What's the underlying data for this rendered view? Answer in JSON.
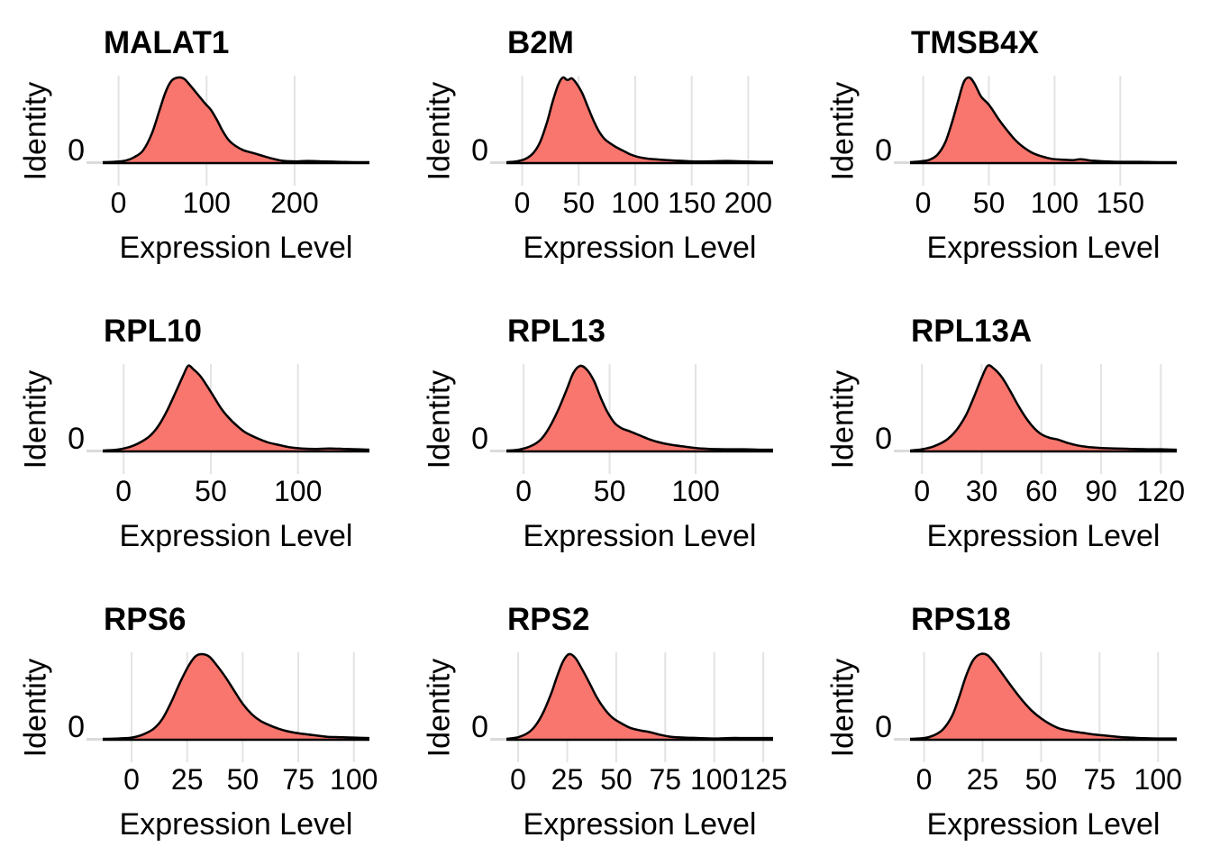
{
  "figure": {
    "description": "3x3 grid of single-identity ridge density plots of gene expression",
    "background": "#FFFFFF",
    "colors": {
      "fill": "#F8766D",
      "curve_stroke": "#000000",
      "gridline": "#E3E3E3",
      "axis_tick": "#DBDBDB",
      "text": "#000000"
    }
  },
  "chart_data": [
    {
      "type": "area",
      "title": "MALAT1",
      "xlabel": "Expression Level",
      "ylabel": "Identity",
      "y_tick_label": "0",
      "legend": "none",
      "grid": "vertical-major-only",
      "x_ticks": [
        0,
        100,
        200
      ],
      "xlim": [
        -18,
        285
      ],
      "density": {
        "x": [
          -18,
          -5,
          8,
          18,
          28,
          38,
          46,
          53,
          60,
          68,
          75,
          82,
          90,
          98,
          105,
          112,
          118,
          125,
          133,
          142,
          152,
          162,
          172,
          185,
          200,
          215,
          230,
          250,
          270,
          285
        ],
        "y_rel": [
          0.01,
          0.015,
          0.03,
          0.07,
          0.15,
          0.35,
          0.6,
          0.82,
          0.96,
          1.0,
          0.98,
          0.9,
          0.8,
          0.7,
          0.62,
          0.5,
          0.38,
          0.27,
          0.2,
          0.15,
          0.12,
          0.09,
          0.06,
          0.03,
          0.02,
          0.025,
          0.02,
          0.015,
          0.01,
          0.01
        ]
      }
    },
    {
      "type": "area",
      "title": "B2M",
      "xlabel": "Expression Level",
      "ylabel": "Identity",
      "y_tick_label": "0",
      "legend": "none",
      "grid": "vertical-major-only",
      "x_ticks": [
        0,
        50,
        100,
        150,
        200
      ],
      "xlim": [
        -14,
        222
      ],
      "density": {
        "x": [
          -14,
          -5,
          3,
          10,
          16,
          22,
          27,
          32,
          36,
          40,
          44,
          48,
          53,
          58,
          63,
          68,
          73,
          78,
          84,
          90,
          96,
          103,
          112,
          122,
          135,
          150,
          165,
          180,
          195,
          210,
          222
        ],
        "y_rel": [
          0.01,
          0.02,
          0.05,
          0.12,
          0.25,
          0.48,
          0.72,
          0.92,
          1.0,
          0.97,
          0.99,
          0.93,
          0.82,
          0.66,
          0.5,
          0.37,
          0.28,
          0.23,
          0.18,
          0.14,
          0.1,
          0.07,
          0.05,
          0.04,
          0.03,
          0.02,
          0.02,
          0.025,
          0.02,
          0.015,
          0.015
        ]
      }
    },
    {
      "type": "area",
      "title": "TMSB4X",
      "xlabel": "Expression Level",
      "ylabel": "Identity",
      "y_tick_label": "0",
      "legend": "none",
      "grid": "vertical-major-only",
      "x_ticks": [
        0,
        50,
        100,
        150
      ],
      "xlim": [
        -10,
        193
      ],
      "density": {
        "x": [
          -10,
          -2,
          5,
          11,
          17,
          22,
          27,
          31,
          35,
          39,
          44,
          49,
          52,
          58,
          64,
          70,
          76,
          83,
          90,
          98,
          106,
          114,
          120,
          128,
          138,
          150,
          165,
          180,
          193
        ],
        "y_rel": [
          0.01,
          0.02,
          0.04,
          0.1,
          0.25,
          0.48,
          0.75,
          0.95,
          1.0,
          0.93,
          0.78,
          0.7,
          0.64,
          0.5,
          0.38,
          0.27,
          0.19,
          0.12,
          0.08,
          0.05,
          0.04,
          0.035,
          0.045,
          0.03,
          0.02,
          0.015,
          0.015,
          0.01,
          0.01
        ]
      }
    },
    {
      "type": "area",
      "title": "RPL10",
      "xlabel": "Expression Level",
      "ylabel": "Identity",
      "y_tick_label": "0",
      "legend": "none",
      "grid": "vertical-major-only",
      "x_ticks": [
        0,
        50,
        100
      ],
      "xlim": [
        -12,
        141
      ],
      "density": {
        "x": [
          -12,
          -4,
          3,
          9,
          15,
          20,
          25,
          30,
          34,
          37,
          40,
          44,
          48,
          52,
          56,
          60,
          65,
          70,
          76,
          82,
          88,
          95,
          102,
          110,
          118,
          126,
          134,
          141
        ],
        "y_rel": [
          0.01,
          0.02,
          0.05,
          0.1,
          0.18,
          0.3,
          0.48,
          0.7,
          0.88,
          1.0,
          0.96,
          0.88,
          0.76,
          0.63,
          0.5,
          0.4,
          0.3,
          0.22,
          0.16,
          0.11,
          0.08,
          0.05,
          0.035,
          0.03,
          0.035,
          0.03,
          0.025,
          0.02
        ]
      }
    },
    {
      "type": "area",
      "title": "RPL13",
      "xlabel": "Expression Level",
      "ylabel": "Identity",
      "y_tick_label": "0",
      "legend": "none",
      "grid": "vertical-major-only",
      "x_ticks": [
        0,
        50,
        100
      ],
      "xlim": [
        -10,
        145
      ],
      "density": {
        "x": [
          -10,
          -3,
          4,
          10,
          15,
          20,
          25,
          29,
          33,
          37,
          41,
          45,
          49,
          53,
          57,
          61,
          66,
          72,
          78,
          85,
          92,
          100,
          108,
          118,
          128,
          138,
          145
        ],
        "y_rel": [
          0.01,
          0.02,
          0.06,
          0.14,
          0.28,
          0.48,
          0.72,
          0.92,
          1.0,
          0.95,
          0.82,
          0.62,
          0.45,
          0.33,
          0.27,
          0.24,
          0.2,
          0.15,
          0.11,
          0.08,
          0.06,
          0.04,
          0.03,
          0.025,
          0.025,
          0.02,
          0.02
        ]
      }
    },
    {
      "type": "area",
      "title": "RPL13A",
      "xlabel": "Expression Level",
      "ylabel": "Identity",
      "y_tick_label": "0",
      "legend": "none",
      "grid": "vertical-major-only",
      "x_ticks": [
        0,
        30,
        60,
        90,
        120
      ],
      "xlim": [
        -6,
        128
      ],
      "density": {
        "x": [
          -6,
          0,
          6,
          12,
          17,
          22,
          26,
          30,
          33,
          36,
          40,
          44,
          48,
          52,
          56,
          60,
          64,
          68,
          73,
          78,
          84,
          90,
          97,
          105,
          113,
          120,
          128
        ],
        "y_rel": [
          0.01,
          0.025,
          0.06,
          0.13,
          0.24,
          0.42,
          0.63,
          0.86,
          1.0,
          0.97,
          0.87,
          0.72,
          0.55,
          0.4,
          0.28,
          0.2,
          0.16,
          0.14,
          0.1,
          0.07,
          0.05,
          0.04,
          0.035,
          0.03,
          0.025,
          0.025,
          0.02
        ]
      }
    },
    {
      "type": "area",
      "title": "RPS6",
      "xlabel": "Expression Level",
      "ylabel": "Identity",
      "y_tick_label": "0",
      "legend": "none",
      "grid": "vertical-major-only",
      "x_ticks": [
        0,
        25,
        50,
        75,
        100
      ],
      "xlim": [
        -13,
        107
      ],
      "density": {
        "x": [
          -13,
          -6,
          0,
          5,
          10,
          14,
          18,
          22,
          26,
          29,
          32,
          35,
          38,
          42,
          46,
          50,
          54,
          58,
          62,
          66,
          70,
          74,
          78,
          83,
          88,
          94,
          100,
          107
        ],
        "y_rel": [
          0.01,
          0.015,
          0.025,
          0.06,
          0.13,
          0.25,
          0.45,
          0.68,
          0.88,
          0.98,
          1.0,
          0.97,
          0.88,
          0.74,
          0.58,
          0.42,
          0.3,
          0.22,
          0.17,
          0.13,
          0.1,
          0.08,
          0.065,
          0.05,
          0.035,
          0.03,
          0.025,
          0.02
        ]
      }
    },
    {
      "type": "area",
      "title": "RPS2",
      "xlabel": "Expression Level",
      "ylabel": "Identity",
      "y_tick_label": "0",
      "legend": "none",
      "grid": "vertical-major-only",
      "x_ticks": [
        0,
        25,
        50,
        75,
        100,
        125
      ],
      "xlim": [
        -6,
        130
      ],
      "density": {
        "x": [
          -6,
          0,
          5,
          9,
          13,
          17,
          20,
          23,
          26,
          29,
          32,
          36,
          40,
          44,
          48,
          52,
          57,
          62,
          67,
          72,
          78,
          85,
          92,
          100,
          108,
          116,
          124,
          130
        ],
        "y_rel": [
          0.01,
          0.03,
          0.08,
          0.17,
          0.33,
          0.55,
          0.75,
          0.92,
          1.0,
          0.96,
          0.85,
          0.68,
          0.5,
          0.36,
          0.26,
          0.2,
          0.14,
          0.11,
          0.09,
          0.06,
          0.035,
          0.025,
          0.02,
          0.015,
          0.02,
          0.02,
          0.02,
          0.02
        ]
      }
    },
    {
      "type": "area",
      "title": "RPS18",
      "xlabel": "Expression Level",
      "ylabel": "Identity",
      "y_tick_label": "0",
      "legend": "none",
      "grid": "vertical-major-only",
      "x_ticks": [
        0,
        25,
        50,
        75,
        100
      ],
      "xlim": [
        -6,
        108
      ],
      "density": {
        "x": [
          -6,
          0,
          4,
          8,
          12,
          15,
          18,
          21,
          24,
          27,
          30,
          34,
          38,
          42,
          46,
          50,
          54,
          58,
          63,
          68,
          73,
          79,
          85,
          92,
          100,
          108
        ],
        "y_rel": [
          0.01,
          0.02,
          0.05,
          0.12,
          0.28,
          0.5,
          0.75,
          0.93,
          1.0,
          0.99,
          0.9,
          0.75,
          0.6,
          0.46,
          0.34,
          0.25,
          0.18,
          0.13,
          0.1,
          0.08,
          0.06,
          0.045,
          0.03,
          0.02,
          0.015,
          0.015
        ]
      }
    }
  ]
}
